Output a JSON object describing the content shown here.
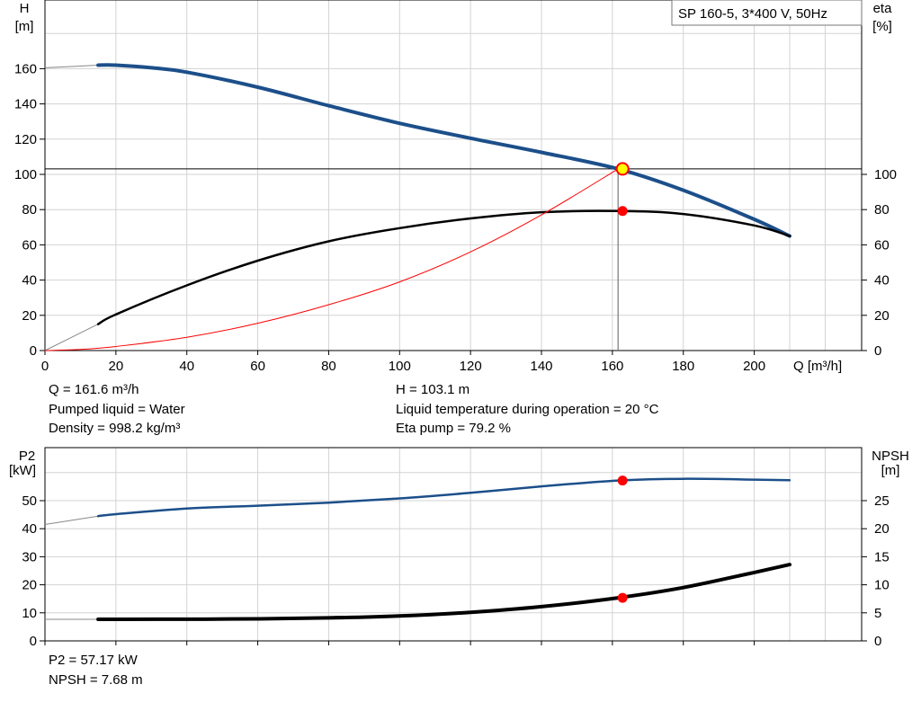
{
  "title_box": "SP 160-5, 3*400 V, 50Hz",
  "main_info": {
    "left": [
      "Q = 161.6 m³/h",
      "Pumped liquid = Water",
      "Density = 998.2 kg/m³"
    ],
    "right": [
      "H = 103.1 m",
      "Liquid temperature during operation = 20 °C",
      "Eta pump = 79.2 %"
    ]
  },
  "lower_info": [
    "P2 = 57.17 kW",
    "NPSH = 7.68 m"
  ],
  "colors": {
    "head": "#1c4f8a",
    "eta": "#000000",
    "system": "#ff0000",
    "grid": "#d3d3d3",
    "marker": "#ff0000",
    "duty": "#ffff00"
  },
  "chart_data": [
    {
      "type": "line",
      "panel": "head-efficiency",
      "xlabel": "Q [m³/h]",
      "ylabel_left": [
        "H",
        "[m]"
      ],
      "ylabel_right": [
        "eta",
        "[%]"
      ],
      "xlim": [
        0,
        230
      ],
      "ylim_left": [
        0,
        180
      ],
      "ylim_right": [
        0,
        180
      ],
      "xticks": [
        0,
        20,
        40,
        60,
        80,
        100,
        120,
        140,
        160,
        180,
        200
      ],
      "yticks_left": [
        0,
        20,
        40,
        60,
        80,
        100,
        120,
        140,
        160
      ],
      "yticks_right": [
        0,
        20,
        40,
        60,
        80,
        100
      ],
      "grid": true,
      "series": [
        {
          "key": "head",
          "axis": "left",
          "width": 4,
          "x": [
            15,
            20,
            30,
            40,
            60,
            80,
            100,
            120,
            140,
            161.6,
            180,
            200,
            210
          ],
          "y": [
            162,
            162,
            160.5,
            158,
            149.5,
            139,
            129,
            120.5,
            112.5,
            103.1,
            91,
            74.5,
            65
          ]
        },
        {
          "key": "eta",
          "axis": "right",
          "width": 2.5,
          "x": [
            15,
            20,
            40,
            60,
            80,
            100,
            120,
            140,
            161.6,
            180,
            200,
            210
          ],
          "y": [
            15,
            20.5,
            37,
            51,
            62,
            69.5,
            75,
            78.5,
            79.2,
            77.5,
            71,
            65
          ]
        },
        {
          "key": "system",
          "axis": "left",
          "width": 1,
          "x": [
            0,
            10,
            20,
            40,
            60,
            80,
            100,
            120,
            140,
            161.6
          ],
          "y": [
            0,
            0.6,
            2.3,
            7.5,
            15.5,
            26,
            39,
            56,
            77,
            103.1
          ]
        }
      ],
      "extensions": [
        {
          "axis": "left",
          "x": [
            0,
            15
          ],
          "y": [
            160.5,
            162
          ]
        },
        {
          "axis": "right",
          "x": [
            0,
            15
          ],
          "y": [
            0,
            15
          ]
        }
      ],
      "duty_point": {
        "x": 161.6,
        "head": 103.1,
        "eta": 79.2
      }
    },
    {
      "type": "line",
      "panel": "power-npsh",
      "ylabel_left": [
        "P2",
        "[kW]"
      ],
      "ylabel_right": [
        "NPSH",
        "[m]"
      ],
      "xlim": [
        0,
        230
      ],
      "ylim_left": [
        0,
        60
      ],
      "ylim_right": [
        0,
        30
      ],
      "yticks_left": [
        0,
        10,
        20,
        30,
        40,
        50
      ],
      "yticks_right": [
        0,
        5,
        10,
        15,
        20,
        25
      ],
      "grid": true,
      "series": [
        {
          "key": "head",
          "axis": "left",
          "width": 2.5,
          "x": [
            15,
            20,
            40,
            60,
            80,
            100,
            120,
            140,
            161.6,
            180,
            200,
            210
          ],
          "y": [
            44.5,
            45.2,
            47.2,
            48.2,
            49.3,
            50.8,
            52.8,
            55.1,
            57.17,
            57.8,
            57.5,
            57.3
          ]
        },
        {
          "key": "eta",
          "axis": "right",
          "width": 4,
          "x": [
            15,
            20,
            40,
            60,
            80,
            100,
            120,
            140,
            161.6,
            180,
            200,
            210
          ],
          "y": [
            3.85,
            3.85,
            3.87,
            3.92,
            4.1,
            4.45,
            5.1,
            6.1,
            7.68,
            9.5,
            12.2,
            13.6
          ]
        }
      ],
      "extensions": [
        {
          "axis": "left",
          "x": [
            0,
            15
          ],
          "y": [
            41.5,
            44.5
          ]
        },
        {
          "axis": "right",
          "x": [
            0,
            15
          ],
          "y": [
            3.85,
            3.85
          ]
        }
      ],
      "markers": [
        {
          "x": 161.6,
          "axis": "left",
          "y": 57.17
        },
        {
          "x": 161.6,
          "axis": "right",
          "y": 7.68
        }
      ]
    }
  ]
}
